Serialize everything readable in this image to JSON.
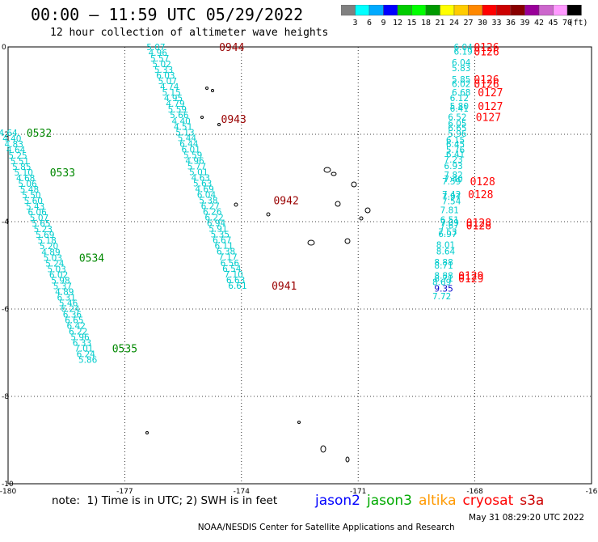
{
  "header": {
    "title": "00:00 – 11:59 UTC 05/29/2022",
    "subtitle": "12 hour collection of altimeter wave heights"
  },
  "colorbar": {
    "colors": [
      "#808080",
      "#00ffff",
      "#00aaff",
      "#0000ff",
      "#00cc00",
      "#00ff00",
      "#009900",
      "#ffff00",
      "#ffcc00",
      "#ff8800",
      "#ff0000",
      "#cc0000",
      "#880000",
      "#990099",
      "#cc66cc",
      "#ff99ff",
      "#000000"
    ],
    "labels": [
      "3",
      "6",
      "9",
      "12",
      "15",
      "18",
      "21",
      "24",
      "27",
      "30",
      "33",
      "36",
      "39",
      "42",
      "45",
      "70"
    ],
    "unit": "(ft)"
  },
  "map": {
    "x_ticks": [
      "-180",
      "-177",
      "-174",
      "-171",
      "-168",
      "-16"
    ],
    "y_ticks": [
      "0",
      "-2",
      "-4",
      "-6",
      "-8",
      "-10"
    ]
  },
  "chart_data": {
    "type": "scatter",
    "xlim": [
      -180,
      -165
    ],
    "ylim": [
      -10,
      0
    ],
    "grid": true,
    "units": "ft",
    "tracks": [
      {
        "satellite": "jason3",
        "color": "#00cccc",
        "points": [
          [
            -180.0,
            -1.96,
            "4.64"
          ],
          [
            -179.9,
            -2.09,
            "4.40"
          ],
          [
            -179.85,
            -2.22,
            "4.83"
          ],
          [
            -179.8,
            -2.35,
            "4.64"
          ],
          [
            -179.75,
            -2.48,
            "5.25"
          ],
          [
            -179.7,
            -2.61,
            "5.51"
          ],
          [
            -179.65,
            -2.74,
            "5.85"
          ],
          [
            -179.6,
            -2.87,
            "5.10"
          ],
          [
            -179.55,
            -3.0,
            "4.68"
          ],
          [
            -179.5,
            -3.13,
            "5.06"
          ],
          [
            -179.45,
            -3.26,
            "5.48"
          ],
          [
            -179.4,
            -3.39,
            "5.50"
          ],
          [
            -179.35,
            -3.52,
            "5.60"
          ],
          [
            -179.3,
            -3.65,
            "5.43"
          ],
          [
            -179.25,
            -3.78,
            "6.06"
          ],
          [
            -179.2,
            -3.91,
            "5.07"
          ],
          [
            -179.15,
            -4.04,
            "5.65"
          ],
          [
            -179.1,
            -4.17,
            "5.23"
          ],
          [
            -179.05,
            -4.3,
            "5.69"
          ],
          [
            -179.0,
            -4.43,
            "5.18"
          ],
          [
            -178.95,
            -4.56,
            "5.20"
          ],
          [
            -178.9,
            -4.69,
            "4.89"
          ],
          [
            -178.85,
            -4.82,
            "5.03"
          ],
          [
            -178.8,
            -4.95,
            "5.24"
          ],
          [
            -178.75,
            -5.08,
            "5.03"
          ],
          [
            -178.7,
            -5.21,
            "6.02"
          ],
          [
            -178.65,
            -5.34,
            "5.98"
          ],
          [
            -178.6,
            -5.47,
            "5.37"
          ],
          [
            -178.55,
            -5.6,
            "4.89"
          ],
          [
            -178.5,
            -5.73,
            "6.31"
          ],
          [
            -178.45,
            -5.86,
            "5.46"
          ],
          [
            -178.4,
            -5.99,
            "6.24"
          ],
          [
            -178.35,
            -6.12,
            "6.36"
          ],
          [
            -178.3,
            -6.25,
            "6.65"
          ],
          [
            -178.25,
            -6.38,
            "6.42"
          ],
          [
            -178.2,
            -6.51,
            "6.22"
          ],
          [
            -178.15,
            -6.64,
            "5.96"
          ],
          [
            -178.1,
            -6.77,
            "6.33"
          ],
          [
            -178.05,
            -6.9,
            "7.01"
          ],
          [
            -178.0,
            -7.03,
            "6.24"
          ],
          [
            -177.95,
            -7.16,
            "5.86"
          ]
        ]
      },
      {
        "satellite": "jason3",
        "color": "#00cccc",
        "points": [
          [
            -176.2,
            -0.0,
            "5.07"
          ],
          [
            -176.15,
            -0.13,
            "4.96"
          ],
          [
            -176.1,
            -0.26,
            "5.57"
          ],
          [
            -176.05,
            -0.39,
            "5.02"
          ],
          [
            -176.0,
            -0.52,
            "5.33"
          ],
          [
            -175.95,
            -0.65,
            "6.03"
          ],
          [
            -175.9,
            -0.78,
            "5.07"
          ],
          [
            -175.85,
            -0.91,
            "4.74"
          ],
          [
            -175.8,
            -1.04,
            "5.15"
          ],
          [
            -175.75,
            -1.17,
            "4.95"
          ],
          [
            -175.7,
            -1.3,
            "4.79"
          ],
          [
            -175.65,
            -1.43,
            "5.59"
          ],
          [
            -175.6,
            -1.56,
            "5.66"
          ],
          [
            -175.55,
            -1.69,
            "4.40"
          ],
          [
            -175.5,
            -1.82,
            "4.51"
          ],
          [
            -175.45,
            -1.95,
            "5.13"
          ],
          [
            -175.4,
            -2.08,
            "5.44"
          ],
          [
            -175.35,
            -2.21,
            "6.44"
          ],
          [
            -175.3,
            -2.34,
            "6.01"
          ],
          [
            -175.25,
            -2.47,
            "5.59"
          ],
          [
            -175.2,
            -2.6,
            "4.96"
          ],
          [
            -175.15,
            -2.73,
            "5.77"
          ],
          [
            -175.1,
            -2.86,
            "5.01"
          ],
          [
            -175.05,
            -2.99,
            "4.63"
          ],
          [
            -175.0,
            -3.12,
            "5.63"
          ],
          [
            -174.95,
            -3.25,
            "4.69"
          ],
          [
            -174.9,
            -3.38,
            "6.04"
          ],
          [
            -174.85,
            -3.51,
            "5.38"
          ],
          [
            -174.8,
            -3.64,
            "6.27"
          ],
          [
            -174.75,
            -3.77,
            "6.26"
          ],
          [
            -174.7,
            -3.9,
            "6.22"
          ],
          [
            -174.65,
            -4.03,
            "6.94"
          ],
          [
            -174.6,
            -4.16,
            "5.91"
          ],
          [
            -174.55,
            -4.29,
            "5.35"
          ],
          [
            -174.5,
            -4.42,
            "6.67"
          ],
          [
            -174.45,
            -4.55,
            "6.11"
          ],
          [
            -174.4,
            -4.68,
            "6.38"
          ],
          [
            -174.35,
            -4.81,
            "7.17"
          ],
          [
            -174.3,
            -4.94,
            "6.56"
          ],
          [
            -174.25,
            -5.07,
            "6.54"
          ],
          [
            -174.2,
            -5.2,
            "7.10"
          ],
          [
            -174.15,
            -5.33,
            "6.63"
          ],
          [
            -174.1,
            -5.46,
            "6.61"
          ]
        ]
      },
      {
        "satellite": "jason3",
        "color": "#00cccc",
        "points": [
          [
            -168.3,
            -0.0,
            "6.04"
          ],
          [
            -168.3,
            -0.1,
            "6.19"
          ],
          [
            -168.35,
            -0.35,
            "6.04"
          ],
          [
            -168.35,
            -0.48,
            "5.83"
          ],
          [
            -168.35,
            -0.74,
            "5.85"
          ],
          [
            -168.35,
            -0.84,
            "6.02"
          ],
          [
            -168.35,
            -1.04,
            "6.68"
          ],
          [
            -168.4,
            -1.17,
            "6.12"
          ],
          [
            -168.4,
            -1.35,
            "5.80"
          ],
          [
            -168.4,
            -1.41,
            "6.41"
          ],
          [
            -168.45,
            -1.6,
            "6.52"
          ],
          [
            -168.45,
            -1.75,
            "6.05"
          ],
          [
            -168.45,
            -1.85,
            "6.65"
          ],
          [
            -168.45,
            -1.98,
            "5.96"
          ],
          [
            -168.5,
            -2.13,
            "6.15"
          ],
          [
            -168.5,
            -2.22,
            "6.45"
          ],
          [
            -168.5,
            -2.35,
            "5.76"
          ],
          [
            -168.5,
            -2.45,
            "6.41"
          ],
          [
            -168.55,
            -2.57,
            "7.23"
          ],
          [
            -168.55,
            -2.72,
            "6.93"
          ],
          [
            -168.55,
            -2.93,
            "7.82"
          ],
          [
            -168.55,
            -3.02,
            "7.40"
          ],
          [
            -168.6,
            -3.07,
            "7.59"
          ],
          [
            -168.6,
            -3.37,
            "7.42"
          ],
          [
            -168.6,
            -3.43,
            "7.97"
          ],
          [
            -168.6,
            -3.53,
            "7.54"
          ],
          [
            -168.65,
            -3.73,
            "7.81"
          ],
          [
            -168.65,
            -3.95,
            "6.51"
          ],
          [
            -168.65,
            -4.02,
            "7.09"
          ],
          [
            -168.65,
            -4.08,
            "7.67"
          ],
          [
            -168.7,
            -4.23,
            "7.53"
          ],
          [
            -168.7,
            -4.28,
            "6.97"
          ],
          [
            -168.75,
            -4.53,
            "8.01"
          ],
          [
            -168.75,
            -4.68,
            "8.64"
          ],
          [
            -168.8,
            -4.93,
            "8.88"
          ],
          [
            -168.8,
            -5.0,
            "8.71"
          ],
          [
            -168.8,
            -5.23,
            "8.88"
          ],
          [
            -168.8,
            -5.3,
            "8.71"
          ],
          [
            -168.85,
            -5.38,
            "8.69"
          ],
          [
            -168.85,
            -5.7,
            "7.72"
          ]
        ]
      },
      {
        "satellite": "jason2",
        "color": "#0000cc",
        "points": [
          [
            -168.8,
            -5.53,
            "9.35"
          ]
        ]
      }
    ],
    "pass_times": [
      {
        "label": "0944",
        "color": "#990000",
        "x": -174.25,
        "y": 0.0
      },
      {
        "label": "0943",
        "color": "#990000",
        "x": -174.2,
        "y": -1.65
      },
      {
        "label": "0942",
        "color": "#990000",
        "x": -172.85,
        "y": -3.51
      },
      {
        "label": "0941",
        "color": "#990000",
        "x": -172.9,
        "y": -5.46
      },
      {
        "label": "0532",
        "color": "#008800",
        "x": -179.2,
        "y": -1.96
      },
      {
        "label": "0533",
        "color": "#008800",
        "x": -178.6,
        "y": -2.87
      },
      {
        "label": "0534",
        "color": "#008800",
        "x": -177.85,
        "y": -4.82
      },
      {
        "label": "0535",
        "color": "#008800",
        "x": -177.0,
        "y": -6.9
      },
      {
        "label": "0126",
        "color": "#ff0000",
        "x": -167.7,
        "y": 0.0
      },
      {
        "label": "0126",
        "color": "#ff0000",
        "x": -167.7,
        "y": -0.1
      },
      {
        "label": "0126",
        "color": "#ff0000",
        "x": -167.7,
        "y": -0.74
      },
      {
        "label": "0126",
        "color": "#ff0000",
        "x": -167.7,
        "y": -0.84
      },
      {
        "label": "0127",
        "color": "#ff0000",
        "x": -167.6,
        "y": -1.04
      },
      {
        "label": "0127",
        "color": "#ff0000",
        "x": -167.6,
        "y": -1.35
      },
      {
        "label": "0127",
        "color": "#ff0000",
        "x": -167.65,
        "y": -1.6
      },
      {
        "label": "0128",
        "color": "#ff0000",
        "x": -167.8,
        "y": -3.07
      },
      {
        "label": "0128",
        "color": "#ff0000",
        "x": -167.85,
        "y": -3.37
      },
      {
        "label": "0128",
        "color": "#ff0000",
        "x": -167.9,
        "y": -4.02
      },
      {
        "label": "0128",
        "color": "#ff0000",
        "x": -167.9,
        "y": -4.08
      },
      {
        "label": "0129",
        "color": "#ff0000",
        "x": -168.1,
        "y": -5.23
      },
      {
        "label": "0129",
        "color": "#ff0000",
        "x": -168.1,
        "y": -5.3
      }
    ]
  },
  "note": "note:  1) Time is in UTC; 2) SWH is in feet",
  "legend": [
    {
      "label": "jason2",
      "color": "#0000ff"
    },
    {
      "label": "jason3",
      "color": "#00aa00"
    },
    {
      "label": "altika",
      "color": "#ff9900"
    },
    {
      "label": "cryosat",
      "color": "#ff0000"
    },
    {
      "label": "s3a",
      "color": "#cc0000"
    }
  ],
  "footer": {
    "source": "NOAA/NESDIS Center for Satellite Applications and Research",
    "date": "May 31 08:29:20 UTC 2022"
  }
}
